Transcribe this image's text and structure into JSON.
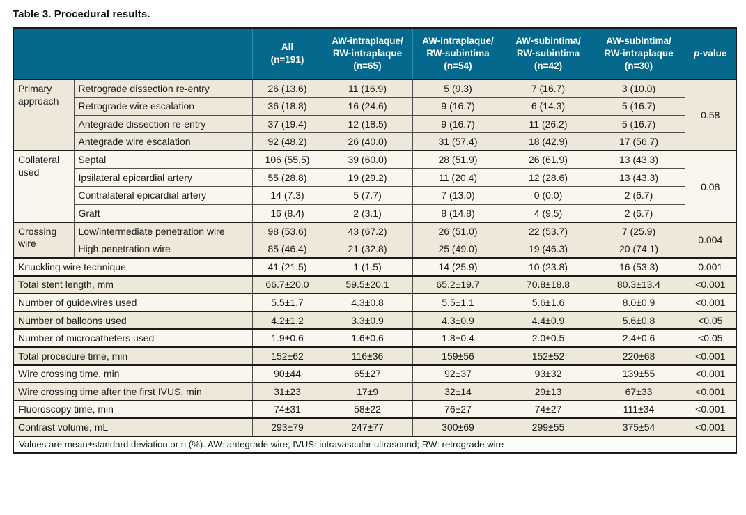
{
  "page": {
    "title": "Table 3. Procedural results."
  },
  "colors": {
    "header_bg": "#04698c",
    "header_text": "#ffffff",
    "header_divider": "#2e8aa9",
    "row_cream": "#ede8d9",
    "row_light": "#f8f6ed",
    "footer_bg": "#fdfdf8",
    "outer_border": "#1b1b1b",
    "inner_border": "#4f4f4f",
    "text": "#1a1a1a"
  },
  "table": {
    "columns": [
      {
        "label": ""
      },
      {
        "label": "All\n(n=191)"
      },
      {
        "label": "AW-intraplaque/\nRW-intraplaque\n(n=65)"
      },
      {
        "label": "AW-intraplaque/\nRW-subintima\n(n=54)"
      },
      {
        "label": "AW-subintima/\nRW-subintima\n(n=42)"
      },
      {
        "label": "AW-subintima/\nRW-intraplaque\n(n=30)"
      },
      {
        "label_italic": "p",
        "label_rest": "-value"
      }
    ],
    "row_groups": [
      {
        "group": "Primary approach",
        "shade": "cream",
        "p_value": "0.58",
        "rows": [
          {
            "label": "Retrograde dissection re-entry",
            "values": [
              "26 (13.6)",
              "11 (16.9)",
              "5 (9.3)",
              "7 (16.7)",
              "3 (10.0)"
            ]
          },
          {
            "label": "Retrograde wire escalation",
            "values": [
              "36 (18.8)",
              "16 (24.6)",
              "9 (16.7)",
              "6 (14.3)",
              "5 (16.7)"
            ]
          },
          {
            "label": "Antegrade dissection re-entry",
            "values": [
              "37 (19.4)",
              "12 (18.5)",
              "9 (16.7)",
              "11 (26.2)",
              "5 (16.7)"
            ]
          },
          {
            "label": "Antegrade wire escalation",
            "values": [
              "92 (48.2)",
              "26 (40.0)",
              "31 (57.4)",
              "18 (42.9)",
              "17 (56.7)"
            ]
          }
        ]
      },
      {
        "group": "Collateral used",
        "shade": "light",
        "p_value": "0.08",
        "rows": [
          {
            "label": "Septal",
            "values": [
              "106 (55.5)",
              "39 (60.0)",
              "28 (51.9)",
              "26 (61.9)",
              "13 (43.3)"
            ]
          },
          {
            "label": "Ipsilateral epicardial artery",
            "values": [
              "55 (28.8)",
              "19 (29.2)",
              "11 (20.4)",
              "12 (28.6)",
              "13 (43.3)"
            ]
          },
          {
            "label": "Contralateral epicardial artery",
            "values": [
              "14 (7.3)",
              "5 (7.7)",
              "7 (13.0)",
              "0 (0.0)",
              "2 (6.7)"
            ]
          },
          {
            "label": "Graft",
            "values": [
              "16 (8.4)",
              "2 (3.1)",
              "8 (14.8)",
              "4 (9.5)",
              "2 (6.7)"
            ]
          }
        ]
      },
      {
        "group": "Crossing wire",
        "shade": "cream",
        "p_value": "0.004",
        "rows": [
          {
            "label": "Low/intermediate penetration wire",
            "values": [
              "98 (53.6)",
              "43 (67.2)",
              "26 (51.0)",
              "22 (53.7)",
              "7 (25.9)"
            ]
          },
          {
            "label": "High penetration wire",
            "values": [
              "85 (46.4)",
              "21 (32.8)",
              "25 (49.0)",
              "19 (46.3)",
              "20 (74.1)"
            ]
          }
        ]
      },
      {
        "group": null,
        "shade": "light",
        "p_value": "0.001",
        "rows": [
          {
            "label": "Knuckling wire technique",
            "values": [
              "41 (21.5)",
              "1 (1.5)",
              "14 (25.9)",
              "10 (23.8)",
              "16 (53.3)"
            ]
          }
        ]
      },
      {
        "group": null,
        "shade": "cream",
        "p_value": "<0.001",
        "rows": [
          {
            "label": "Total stent length, mm",
            "values": [
              "66.7±20.0",
              "59.5±20.1",
              "65.2±19.7",
              "70.8±18.8",
              "80.3±13.4"
            ]
          }
        ]
      },
      {
        "group": null,
        "shade": "light",
        "p_value": "<0.001",
        "rows": [
          {
            "label": "Number of guidewires used",
            "values": [
              "5.5±1.7",
              "4.3±0.8",
              "5.5±1.1",
              "5.6±1.6",
              "8.0±0.9"
            ]
          }
        ]
      },
      {
        "group": null,
        "shade": "cream",
        "p_value": "<0.05",
        "rows": [
          {
            "label": "Number of balloons used",
            "values": [
              "4.2±1.2",
              "3.3±0.9",
              "4.3±0.9",
              "4.4±0.9",
              "5.6±0.8"
            ]
          }
        ]
      },
      {
        "group": null,
        "shade": "light",
        "p_value": "<0.05",
        "rows": [
          {
            "label": "Number of microcatheters used",
            "values": [
              "1.9±0.6",
              "1.6±0.6",
              "1.8±0.4",
              "2.0±0.5",
              "2.4±0.6"
            ]
          }
        ]
      },
      {
        "group": null,
        "shade": "cream",
        "p_value": "<0.001",
        "rows": [
          {
            "label": "Total procedure time, min",
            "values": [
              "152±62",
              "116±36",
              "159±56",
              "152±52",
              "220±68"
            ]
          }
        ]
      },
      {
        "group": null,
        "shade": "light",
        "p_value": "<0.001",
        "rows": [
          {
            "label": "Wire crossing time, min",
            "values": [
              "90±44",
              "65±27",
              "92±37",
              "93±32",
              "139±55"
            ]
          }
        ]
      },
      {
        "group": null,
        "shade": "cream",
        "p_value": "<0.001",
        "rows": [
          {
            "label": "Wire crossing time after the first IVUS, min",
            "values": [
              "31±23",
              "17±9",
              "32±14",
              "29±13",
              "67±33"
            ]
          }
        ]
      },
      {
        "group": null,
        "shade": "light",
        "p_value": "<0.001",
        "rows": [
          {
            "label": "Fluoroscopy time, min",
            "values": [
              "74±31",
              "58±22",
              "76±27",
              "74±27",
              "111±34"
            ]
          }
        ]
      },
      {
        "group": null,
        "shade": "cream",
        "p_value": "<0.001",
        "rows": [
          {
            "label": "Contrast volume, mL",
            "values": [
              "293±79",
              "247±77",
              "300±69",
              "299±55",
              "375±54"
            ]
          }
        ]
      }
    ],
    "footnote": "Values are mean±standard deviation or n (%). AW: antegrade wire; IVUS: intravascular ultrasound; RW: retrograde wire"
  }
}
